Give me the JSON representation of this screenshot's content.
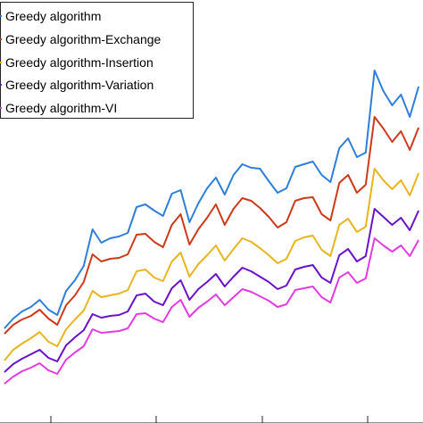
{
  "chart_data": {
    "type": "line",
    "title": "",
    "xlabel": "",
    "ylabel": "",
    "x": [
      1,
      2,
      3,
      4,
      5,
      6,
      7,
      8,
      9,
      10,
      11,
      12,
      13,
      14,
      15,
      16,
      17,
      18,
      19,
      20,
      21,
      22,
      23,
      24,
      25,
      26,
      27,
      28,
      29,
      30,
      31,
      32,
      33,
      34,
      35,
      36,
      37,
      38,
      39,
      40,
      41,
      42,
      43,
      44,
      45,
      46,
      47,
      48
    ],
    "xlim": [
      0.5,
      48.5
    ],
    "ylim": [
      0,
      474
    ],
    "grid": false,
    "legend_position": "top-left",
    "series": [
      {
        "name": "Greedy algorithm",
        "color": "#2E7FD9",
        "values": [
          106,
          117,
          125,
          130,
          138,
          127,
          121,
          148,
          160,
          176,
          217,
          202,
          207,
          209,
          213,
          242,
          245,
          238,
          232,
          257,
          261,
          225,
          246,
          263,
          275,
          256,
          278,
          290,
          286,
          285,
          271,
          258,
          263,
          287,
          290,
          293,
          278,
          270,
          308,
          319,
          298,
          303,
          395,
          372,
          356,
          368,
          343,
          377
        ]
      },
      {
        "name": "Greedy algorithm-Exchange",
        "color": "#CC3A1A",
        "values": [
          100,
          110,
          116,
          120,
          127,
          117,
          110,
          132,
          143,
          158,
          189,
          181,
          184,
          185,
          189,
          211,
          212,
          203,
          197,
          222,
          234,
          200,
          217,
          230,
          245,
          222,
          240,
          252,
          249,
          241,
          231,
          219,
          225,
          249,
          252,
          253,
          234,
          227,
          269,
          278,
          258,
          267,
          343,
          330,
          315,
          327,
          306,
          331
        ]
      },
      {
        "name": "Greedy algorithm-Insertion",
        "color": "#E8B420",
        "values": [
          70,
          82,
          89,
          95,
          102,
          91,
          86,
          105,
          116,
          126,
          148,
          141,
          143,
          145,
          149,
          170,
          172,
          163,
          159,
          181,
          191,
          164,
          178,
          188,
          199,
          182,
          195,
          207,
          203,
          196,
          188,
          179,
          184,
          204,
          208,
          210,
          194,
          187,
          222,
          229,
          214,
          220,
          285,
          272,
          262,
          272,
          255,
          280
        ]
      },
      {
        "name": "Greedy algorithm-Variation",
        "color": "#6A12C8",
        "values": [
          57,
          66,
          72,
          77,
          82,
          73,
          69,
          87,
          96,
          104,
          122,
          118,
          120,
          121,
          125,
          143,
          145,
          136,
          132,
          151,
          160,
          138,
          150,
          158,
          167,
          153,
          164,
          174,
          170,
          164,
          158,
          150,
          154,
          172,
          175,
          177,
          163,
          157,
          188,
          195,
          181,
          187,
          240,
          231,
          222,
          230,
          216,
          238
        ]
      },
      {
        "name": "Greedy algorithm-VI",
        "color": "#E23CE0",
        "values": [
          44,
          52,
          58,
          62,
          67,
          59,
          55,
          71,
          79,
          86,
          105,
          101,
          102,
          103,
          106,
          122,
          123,
          117,
          113,
          130,
          138,
          119,
          129,
          136,
          144,
          132,
          141,
          150,
          147,
          142,
          137,
          130,
          133,
          149,
          151,
          153,
          141,
          135,
          163,
          169,
          157,
          162,
          207,
          199,
          192,
          199,
          187,
          205
        ]
      }
    ]
  }
}
